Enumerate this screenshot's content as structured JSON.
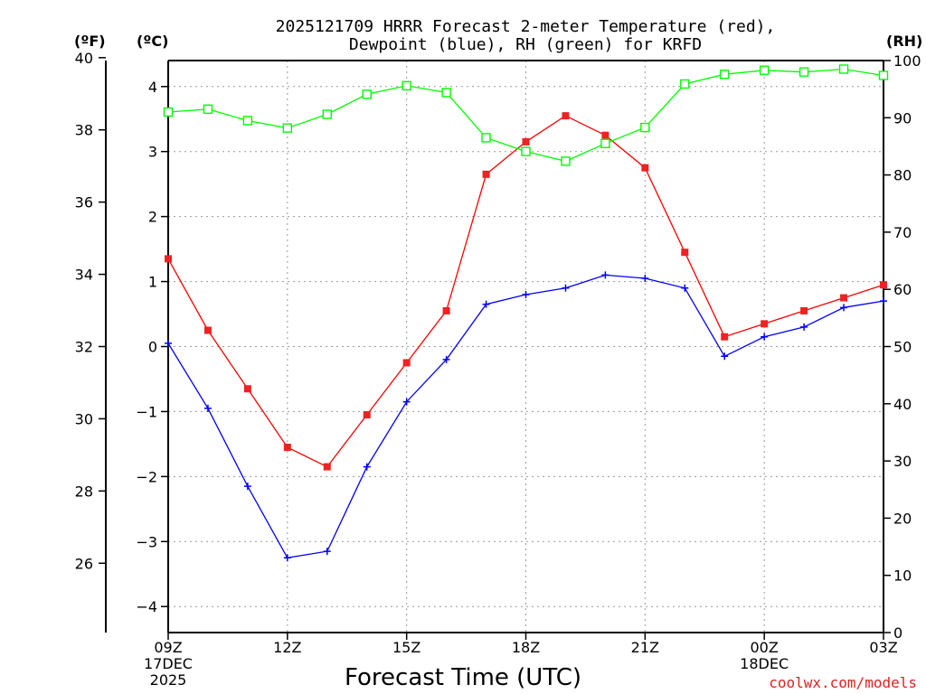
{
  "chart_data": {
    "type": "line",
    "title": [
      "2025121709 HRRR Forecast 2-meter Temperature (red),",
      "Dewpoint (blue), RH (green) for KRFD"
    ],
    "xlabel": "Forecast Time (UTC)",
    "credit": "coolwx.com/models",
    "unit_labels": {
      "fahrenheit": "(ºF)",
      "celsius": "(ºC)",
      "rh": "(RH)"
    },
    "x_hours": [
      9,
      10,
      11,
      12,
      13,
      14,
      15,
      16,
      17,
      18,
      19,
      20,
      21,
      22,
      23,
      24,
      25,
      26,
      27
    ],
    "x_ticks": [
      {
        "hour": 9,
        "lines": [
          "09Z",
          "17DEC",
          "2025"
        ]
      },
      {
        "hour": 12,
        "lines": [
          "12Z"
        ]
      },
      {
        "hour": 15,
        "lines": [
          "15Z"
        ]
      },
      {
        "hour": 18,
        "lines": [
          "18Z"
        ]
      },
      {
        "hour": 21,
        "lines": [
          "21Z"
        ]
      },
      {
        "hour": 24,
        "lines": [
          "00Z",
          "18DEC"
        ]
      },
      {
        "hour": 27,
        "lines": [
          "03Z"
        ]
      }
    ],
    "xlim": [
      9,
      27
    ],
    "celsius_axis": {
      "ylim": [
        -4.4,
        4.4
      ],
      "ticks": [
        4,
        3,
        2,
        1,
        0,
        -1,
        -2,
        -3,
        -4
      ],
      "tick_labels": [
        "4",
        "3",
        "2",
        "1",
        "0",
        "−1",
        "−2",
        "−3",
        "−4"
      ]
    },
    "fahrenheit_axis": {
      "ylim": [
        24.08,
        39.92
      ],
      "ticks": [
        40,
        38,
        36,
        34,
        32,
        30,
        28,
        26
      ],
      "tick_labels": [
        "40",
        "38",
        "36",
        "34",
        "32",
        "30",
        "28",
        "26"
      ]
    },
    "rh_axis": {
      "ylim": [
        0,
        100
      ],
      "ticks": [
        100,
        90,
        80,
        70,
        60,
        50,
        40,
        30,
        20,
        10,
        0
      ],
      "tick_labels": [
        "100",
        "90",
        "80",
        "70",
        "60",
        "50",
        "40",
        "30",
        "20",
        "10",
        "0"
      ]
    },
    "grid": true,
    "series": [
      {
        "name": "2-meter Temperature",
        "axis": "celsius",
        "color": "#ff0000",
        "marker": "filled-square",
        "values": [
          1.35,
          0.25,
          -0.65,
          -1.55,
          -1.85,
          -1.05,
          -0.25,
          0.55,
          2.65,
          3.15,
          3.55,
          3.25,
          2.75,
          1.45,
          0.15,
          0.35,
          0.55,
          0.75,
          0.95
        ]
      },
      {
        "name": "Dewpoint",
        "axis": "celsius",
        "color": "#0000ff",
        "marker": "plus",
        "values": [
          0.05,
          -0.95,
          -2.15,
          -3.25,
          -3.15,
          -1.85,
          -0.85,
          -0.2,
          0.65,
          0.8,
          0.9,
          1.1,
          1.05,
          0.9,
          -0.15,
          0.15,
          0.3,
          0.6,
          0.7
        ]
      },
      {
        "name": "RH",
        "axis": "rh",
        "color": "#00ff00",
        "marker": "open-square",
        "values": [
          91,
          91.5,
          89.5,
          88.2,
          90.6,
          94.1,
          95.6,
          94.4,
          86.5,
          84.1,
          82.4,
          85.5,
          88.3,
          95.9,
          97.6,
          98.3,
          98.0,
          98.5,
          97.4
        ]
      }
    ]
  }
}
